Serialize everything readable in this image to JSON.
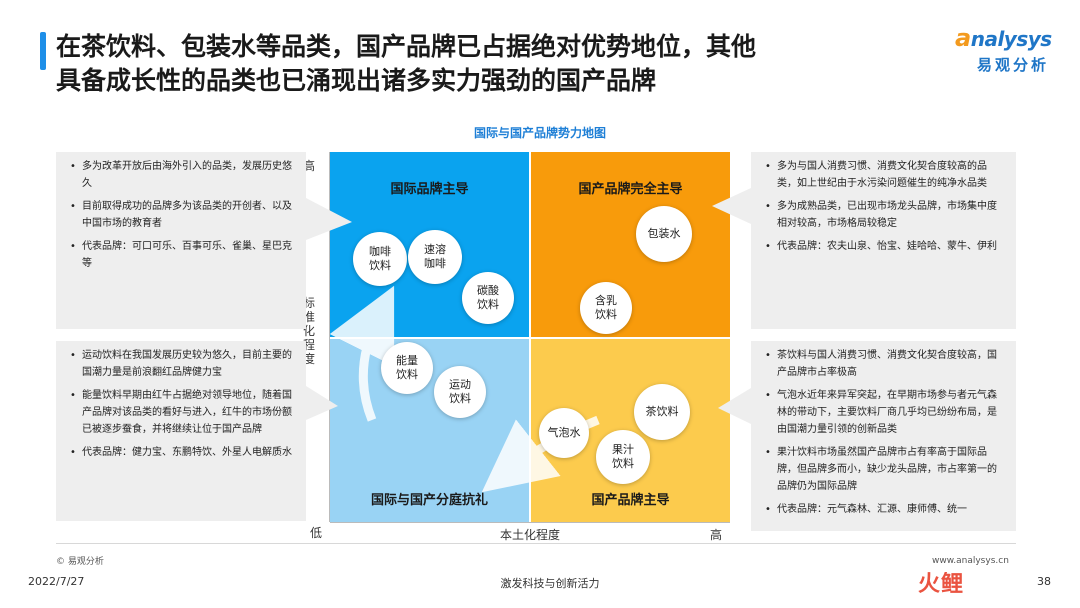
{
  "header": {
    "title_line1": "在茶饮料、包装水等品类，国产品牌已占据绝对优势地位，其他",
    "title_line2": "具备成长性的品类也已涌现出诸多实力强劲的国产品牌"
  },
  "logo": {
    "en_a": "a",
    "en_rest": "nalysys",
    "cn": "易观分析"
  },
  "map": {
    "title": "国际与国产品牌势力地图",
    "quadrants": {
      "top_left": "国际品牌主导",
      "top_right": "国产品牌完全主导",
      "bottom_left": "国际与国产分庭抗礼",
      "bottom_right": "国产品牌主导"
    },
    "y_axis": {
      "label": "标准化程度",
      "high": "高",
      "low": "低"
    },
    "x_axis": {
      "label": "本土化程度",
      "high": "高"
    },
    "bubbles": {
      "coffee": "咖啡饮料",
      "instant_coffee": "速溶咖啡",
      "soda": "碳酸饮料",
      "water": "包装水",
      "milk": "含乳饮料",
      "energy": "能量饮料",
      "sports": "运动饮料",
      "tea": "茶饮料",
      "sparkling": "气泡水",
      "juice": "果汁饮料"
    }
  },
  "notes": {
    "top_left": [
      "多为改革开放后由海外引入的品类，发展历史悠久",
      "目前取得成功的品牌多为该品类的开创者、以及中国市场的教育者",
      "代表品牌：可口可乐、百事可乐、雀巢、星巴克等"
    ],
    "bottom_left": [
      "运动饮料在我国发展历史较为悠久，目前主要的国潮力量是前浪翻红品牌健力宝",
      "能量饮料早期由红牛占据绝对领导地位，随着国产品牌对该品类的看好与进入，红牛的市场份额已被逐步蚕食，并将继续让位于国产品牌",
      "代表品牌：健力宝、东鹏特饮、外星人电解质水"
    ],
    "top_right": [
      "多为与国人消费习惯、消费文化契合度较高的品类，如上世纪由于水污染问题催生的纯净水品类",
      "多为成熟品类，已出现市场龙头品牌，市场集中度相对较高，市场格局较稳定",
      "代表品牌：农夫山泉、怡宝、娃哈哈、蒙牛、伊利"
    ],
    "bottom_right": [
      "茶饮料与国人消费习惯、消费文化契合度较高，国产品牌市占率极高",
      "气泡水近年来异军突起，在早期市场参与者元气森林的带动下，主要饮料厂商几乎均已纷纷布局，是由国潮力量引领的创新品类",
      "果汁饮料市场虽然国产品牌市占有率高于国际品牌，但品牌多而小，缺少龙头品牌，市占率第一的品牌仍为国际品牌",
      "代表品牌：元气森林、汇源、康师傅、统一"
    ]
  },
  "footer": {
    "copyright": "© 易观分析",
    "date": "2022/7/27",
    "slogan": "激发科技与创新活力",
    "site": "www.analysys.cn",
    "page": "38",
    "brand_mark": "火鲤"
  },
  "colors": {
    "quad_tl": "#0aa3ef",
    "quad_tr": "#f89b0b",
    "quad_bl": "#99d3f4",
    "quad_br": "#fccb4d",
    "accent": "#1e8fe8"
  }
}
